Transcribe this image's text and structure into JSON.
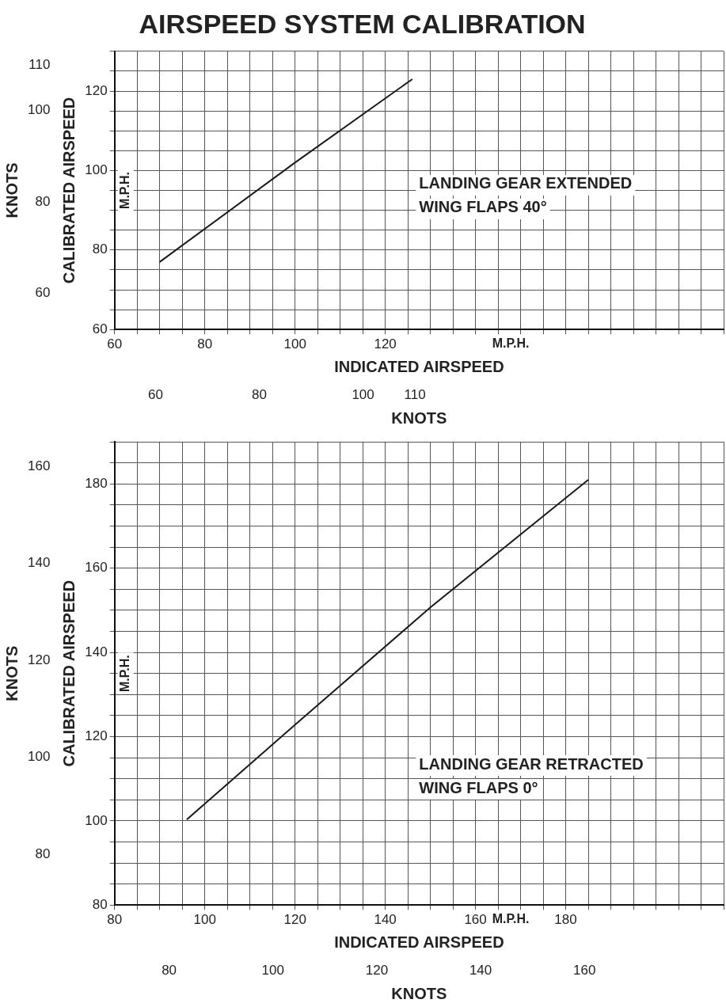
{
  "chart_data": [
    {
      "type": "line",
      "title": "AIRSPEED SYSTEM CALIBRATION",
      "xlabel": "INDICATED AIRSPEED",
      "ylabel": "CALIBRATED AIRSPEED",
      "x2label": "KNOTS",
      "y2label": "KNOTS",
      "annotations": [
        "M.P.H.",
        "M.P.H."
      ],
      "xlim": [
        60,
        195
      ],
      "ylim": [
        60,
        130
      ],
      "x2lim": [
        52.1,
        169.5
      ],
      "y2lim": [
        52.1,
        113
      ],
      "xticks": [
        60,
        {
          "value": 65,
          "label": null
        },
        {
          "value": 70,
          "label": null
        },
        {
          "value": 75,
          "label": null
        },
        80,
        {
          "value": 85,
          "label": null
        },
        {
          "value": 90,
          "label": null
        },
        {
          "value": 95,
          "label": null
        },
        100,
        {
          "value": 105,
          "label": null
        },
        {
          "value": 110,
          "label": null
        },
        {
          "value": 115,
          "label": null
        },
        120,
        {
          "value": 125,
          "label": null
        },
        {
          "value": 130,
          "label": null
        },
        {
          "value": 135,
          "label": null
        },
        {
          "value": 140,
          "label": null
        },
        {
          "value": 145,
          "label": null
        },
        {
          "value": 150,
          "label": null
        },
        {
          "value": 155,
          "label": null
        },
        {
          "value": 160,
          "label": null
        },
        {
          "value": 165,
          "label": null
        },
        {
          "value": 170,
          "label": null
        },
        {
          "value": 175,
          "label": null
        },
        {
          "value": 180,
          "label": null
        },
        {
          "value": 185,
          "label": null
        },
        {
          "value": 190,
          "label": null
        },
        {
          "value": 195,
          "label": null
        }
      ],
      "yticks": [
        60,
        {
          "value": 65,
          "label": null
        },
        {
          "value": 70,
          "label": null
        },
        {
          "value": 75,
          "label": null
        },
        80,
        {
          "value": 85,
          "label": null
        },
        {
          "value": 90,
          "label": null
        },
        {
          "value": 95,
          "label": null
        },
        100,
        {
          "value": 105,
          "label": null
        },
        {
          "value": 110,
          "label": null
        },
        {
          "value": 115,
          "label": null
        },
        120,
        {
          "value": 125,
          "label": null
        },
        {
          "value": 130,
          "label": null
        }
      ],
      "x2ticks": [
        60,
        80,
        100,
        110
      ],
      "y2ticks": [
        60,
        80,
        100,
        110
      ],
      "grid": true,
      "legend": false,
      "marker": "none",
      "line_style": "solid",
      "series": [
        {
          "name": "LANDING GEAR EXTENDED WING FLAPS 40°",
          "color": "#1a1a1a",
          "x": [
            70,
            100,
            126
          ],
          "values": [
            77,
            102,
            123
          ]
        }
      ]
    },
    {
      "type": "line",
      "xlabel": "INDICATED AIRSPEED",
      "ylabel": "CALIBRATED AIRSPEED",
      "x2label": "KNOTS",
      "y2label": "KNOTS",
      "annotations": [
        "M.P.H.",
        "M.P.H."
      ],
      "xlim": [
        80,
        215
      ],
      "ylim": [
        80,
        190
      ],
      "x2lim": [
        69.5,
        186.8
      ],
      "y2lim": [
        69.5,
        165.1
      ],
      "xticks": [
        80,
        {
          "value": 85,
          "label": null
        },
        {
          "value": 90,
          "label": null
        },
        {
          "value": 95,
          "label": null
        },
        100,
        {
          "value": 105,
          "label": null
        },
        {
          "value": 110,
          "label": null
        },
        {
          "value": 115,
          "label": null
        },
        120,
        {
          "value": 125,
          "label": null
        },
        {
          "value": 130,
          "label": null
        },
        {
          "value": 135,
          "label": null
        },
        140,
        {
          "value": 145,
          "label": null
        },
        {
          "value": 150,
          "label": null
        },
        {
          "value": 155,
          "label": null
        },
        160,
        {
          "value": 165,
          "label": null
        },
        {
          "value": 170,
          "label": null
        },
        {
          "value": 175,
          "label": null
        },
        180,
        {
          "value": 185,
          "label": null
        },
        {
          "value": 190,
          "label": null
        },
        {
          "value": 195,
          "label": null
        },
        {
          "value": 200,
          "label": null
        },
        {
          "value": 205,
          "label": null
        },
        {
          "value": 210,
          "label": null
        },
        {
          "value": 215,
          "label": null
        }
      ],
      "yticks": [
        80,
        {
          "value": 85,
          "label": null
        },
        {
          "value": 90,
          "label": null
        },
        {
          "value": 95,
          "label": null
        },
        100,
        {
          "value": 105,
          "label": null
        },
        {
          "value": 110,
          "label": null
        },
        {
          "value": 115,
          "label": null
        },
        120,
        {
          "value": 125,
          "label": null
        },
        {
          "value": 130,
          "label": null
        },
        {
          "value": 135,
          "label": null
        },
        140,
        {
          "value": 145,
          "label": null
        },
        {
          "value": 150,
          "label": null
        },
        {
          "value": 155,
          "label": null
        },
        160,
        {
          "value": 165,
          "label": null
        },
        {
          "value": 170,
          "label": null
        },
        {
          "value": 175,
          "label": null
        },
        180,
        {
          "value": 185,
          "label": null
        },
        {
          "value": 190,
          "label": null
        }
      ],
      "x2ticks": [
        80,
        100,
        120,
        140,
        160
      ],
      "y2ticks": [
        80,
        100,
        120,
        140,
        160
      ],
      "grid": true,
      "legend": false,
      "marker": "none",
      "line_style": "solid",
      "series": [
        {
          "name": "LANDING GEAR RETRACTED WING FLAPS 0°",
          "color": "#1a1a1a",
          "x": [
            96,
            120,
            150,
            185
          ],
          "values": [
            100.3,
            122.8,
            150.7,
            181
          ]
        }
      ]
    }
  ]
}
